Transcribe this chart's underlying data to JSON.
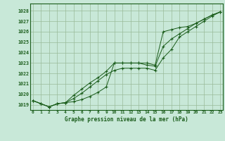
{
  "title": "Graphe pression niveau de la mer (hPa)",
  "background_color": "#c8e8d8",
  "grid_color": "#99bb99",
  "line_color": "#1a5c1a",
  "x_ticks": [
    0,
    1,
    2,
    3,
    4,
    5,
    6,
    7,
    8,
    9,
    10,
    11,
    12,
    13,
    14,
    15,
    16,
    17,
    18,
    19,
    20,
    21,
    22,
    23
  ],
  "y_ticks": [
    1019,
    1020,
    1021,
    1022,
    1023,
    1024,
    1025,
    1026,
    1027,
    1028
  ],
  "ylim": [
    1018.5,
    1028.7
  ],
  "xlim": [
    -0.3,
    23.3
  ],
  "line1": [
    1019.4,
    1019.1,
    1018.8,
    1019.1,
    1019.2,
    1019.6,
    1020.1,
    1020.7,
    1021.3,
    1021.9,
    1022.3,
    1022.5,
    1022.5,
    1022.5,
    1022.5,
    1022.3,
    1023.5,
    1024.3,
    1025.5,
    1026.0,
    1026.5,
    1027.0,
    1027.5,
    1027.9
  ],
  "line2": [
    1019.4,
    1019.1,
    1018.8,
    1019.1,
    1019.2,
    1019.9,
    1020.5,
    1021.1,
    1021.6,
    1022.2,
    1023.0,
    1023.0,
    1023.0,
    1023.0,
    1022.8,
    1022.7,
    1024.6,
    1025.3,
    1025.8,
    1026.3,
    1026.8,
    1027.2,
    1027.6,
    1027.9
  ],
  "line3": [
    1019.4,
    1019.1,
    1018.8,
    1019.1,
    1019.2,
    1019.3,
    1019.5,
    1019.8,
    1020.2,
    1020.7,
    1023.0,
    1023.0,
    1023.0,
    1023.0,
    1023.0,
    1022.8,
    1026.0,
    1026.2,
    1026.4,
    1026.5,
    1026.8,
    1027.2,
    1027.6,
    1027.9
  ]
}
